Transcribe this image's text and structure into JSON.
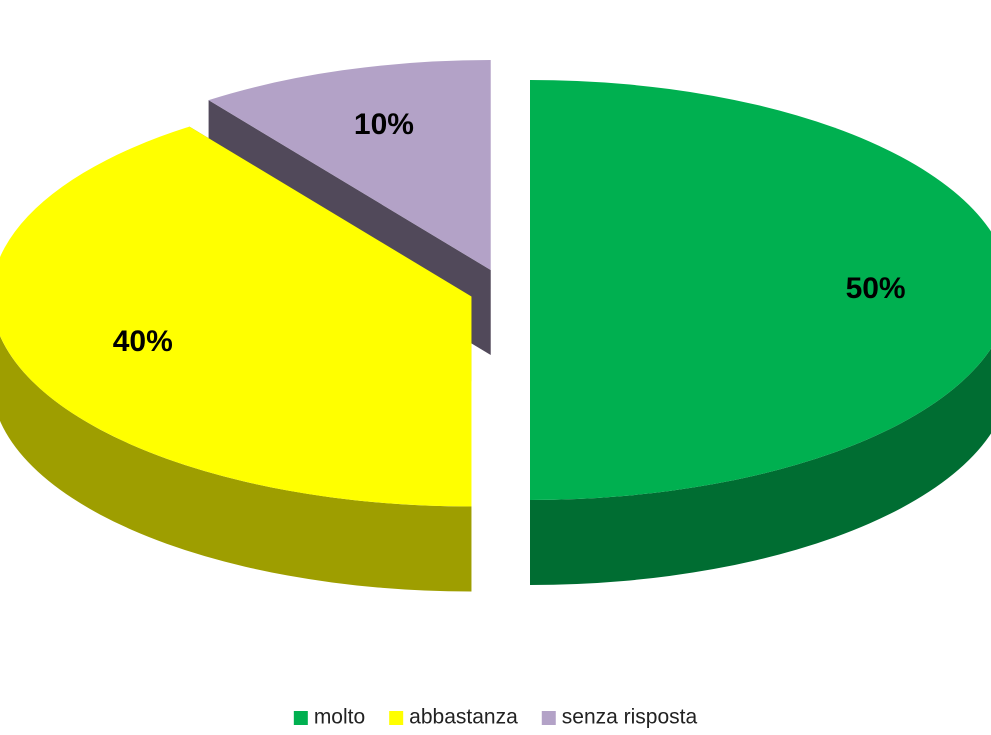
{
  "chart_data": {
    "type": "pie",
    "categories": [
      "molto",
      "abbastanza",
      "senza risposta"
    ],
    "values": [
      50,
      40,
      10
    ],
    "value_labels": [
      "50%",
      "40%",
      "10%"
    ],
    "colors": [
      "#00b050",
      "#ffff00",
      "#b3a2c7"
    ],
    "legend": "bottom"
  }
}
